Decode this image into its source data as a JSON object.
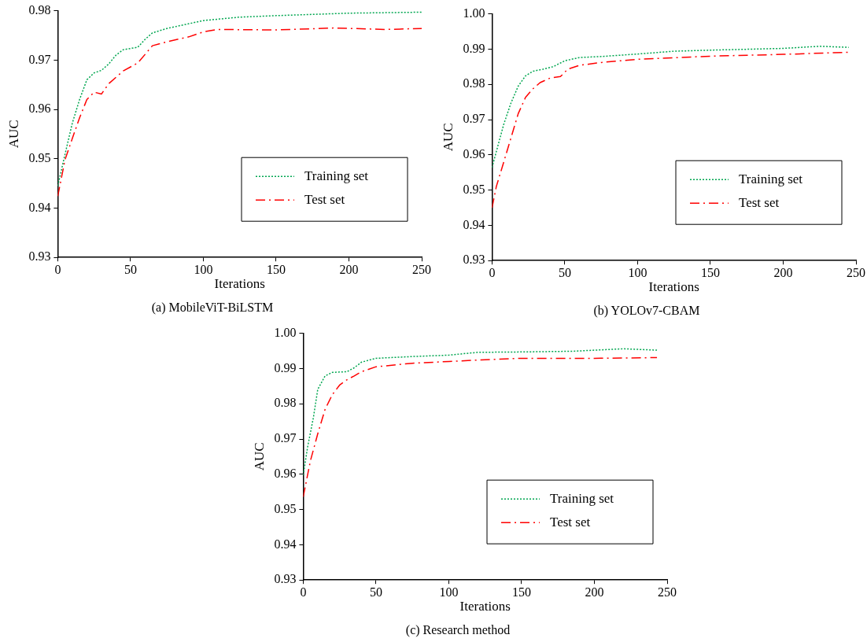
{
  "chart_data": [
    {
      "type": "line",
      "title": "(a) MobileViT-BiLSTM",
      "xlabel": "Iterations",
      "ylabel": "AUC",
      "xlim": [
        0,
        250
      ],
      "xticks": [
        0,
        50,
        100,
        150,
        200,
        250
      ],
      "ylim": [
        0.93,
        0.98
      ],
      "yticks": [
        0.93,
        0.94,
        0.95,
        0.96,
        0.97,
        0.98
      ],
      "grid": false,
      "legend": "bottom right",
      "series": [
        {
          "name": "Training set",
          "color": "#00a650",
          "line_style": "dotted",
          "x": [
            0,
            5,
            10,
            15,
            20,
            25,
            30,
            35,
            40,
            45,
            55,
            60,
            65,
            75,
            100,
            125,
            150,
            200,
            250
          ],
          "values": [
            0.9445,
            0.9509,
            0.9572,
            0.962,
            0.966,
            0.9674,
            0.9679,
            0.9692,
            0.971,
            0.9721,
            0.9726,
            0.9742,
            0.9755,
            0.9764,
            0.978,
            0.9787,
            0.979,
            0.9795,
            0.9797
          ]
        },
        {
          "name": "Test set",
          "color": "#ff0000",
          "line_style": "dashed",
          "x": [
            0,
            5,
            10,
            15,
            20,
            25,
            30,
            35,
            45,
            55,
            65,
            75,
            90,
            100,
            110,
            150,
            190,
            225,
            250
          ],
          "values": [
            0.9424,
            0.9498,
            0.9541,
            0.9583,
            0.962,
            0.9635,
            0.9631,
            0.9652,
            0.9678,
            0.9694,
            0.9729,
            0.9737,
            0.9747,
            0.9757,
            0.9762,
            0.9761,
            0.9765,
            0.9762,
            0.9764
          ]
        }
      ]
    },
    {
      "type": "line",
      "title": "(b) YOLOv7-CBAM",
      "xlabel": "Iterations",
      "ylabel": "AUC",
      "xlim": [
        0,
        250
      ],
      "xticks": [
        0,
        50,
        100,
        150,
        200,
        250
      ],
      "ylim": [
        0.93,
        1.0
      ],
      "yticks": [
        0.93,
        0.94,
        0.95,
        0.96,
        0.97,
        0.98,
        0.99,
        {
          "value": 1.0,
          "label": "1.00"
        }
      ],
      "grid": false,
      "legend": "bottom right",
      "series": [
        {
          "name": "Training set",
          "color": "#00a650",
          "line_style": "dotted",
          "x": [
            0,
            3,
            8,
            13,
            18,
            23,
            28,
            35,
            42,
            50,
            60,
            75,
            100,
            125,
            150,
            200,
            225,
            245
          ],
          "values": [
            0.9564,
            0.961,
            0.9686,
            0.9747,
            0.9795,
            0.9824,
            0.9837,
            0.9843,
            0.985,
            0.9867,
            0.9876,
            0.9879,
            0.9886,
            0.9894,
            0.9897,
            0.9902,
            0.9908,
            0.9905
          ]
        },
        {
          "name": "Test set",
          "color": "#ff0000",
          "line_style": "dashed",
          "x": [
            0,
            3,
            8,
            13,
            18,
            23,
            28,
            33,
            40,
            47,
            52,
            60,
            75,
            100,
            150,
            200,
            245
          ],
          "values": [
            0.945,
            0.9511,
            0.9579,
            0.9648,
            0.9717,
            0.9763,
            0.9787,
            0.9805,
            0.9818,
            0.9822,
            0.9843,
            0.9854,
            0.9862,
            0.9871,
            0.988,
            0.9885,
            0.9891
          ]
        }
      ]
    },
    {
      "type": "line",
      "title": "(c) Research method",
      "xlabel": "Iterations",
      "ylabel": "AUC",
      "xlim": [
        0,
        250
      ],
      "xticks": [
        0,
        50,
        100,
        150,
        200,
        250
      ],
      "ylim": [
        0.93,
        1.0
      ],
      "yticks": [
        0.93,
        0.94,
        0.95,
        0.96,
        0.97,
        0.98,
        0.99,
        {
          "value": 1.0,
          "label": "1.00"
        }
      ],
      "grid": false,
      "legend": "bottom right",
      "series": [
        {
          "name": "Training set",
          "color": "#00a650",
          "line_style": "dotted",
          "x": [
            0,
            3,
            7,
            10,
            15,
            20,
            30,
            35,
            40,
            50,
            75,
            100,
            120,
            150,
            185,
            220,
            243
          ],
          "values": [
            0.9597,
            0.9677,
            0.9761,
            0.9841,
            0.9879,
            0.9889,
            0.9891,
            0.9902,
            0.9918,
            0.9929,
            0.9934,
            0.9938,
            0.9946,
            0.9947,
            0.9949,
            0.9956,
            0.9952
          ]
        },
        {
          "name": "Test set",
          "color": "#ff0000",
          "line_style": "dashed",
          "x": [
            0,
            5,
            10,
            15,
            20,
            25,
            30,
            35,
            40,
            50,
            75,
            100,
            125,
            150,
            200,
            243
          ],
          "values": [
            0.9536,
            0.9639,
            0.9715,
            0.9784,
            0.9826,
            0.9853,
            0.9868,
            0.9879,
            0.9891,
            0.9905,
            0.9915,
            0.992,
            0.9925,
            0.9929,
            0.9929,
            0.9931
          ]
        }
      ]
    }
  ]
}
